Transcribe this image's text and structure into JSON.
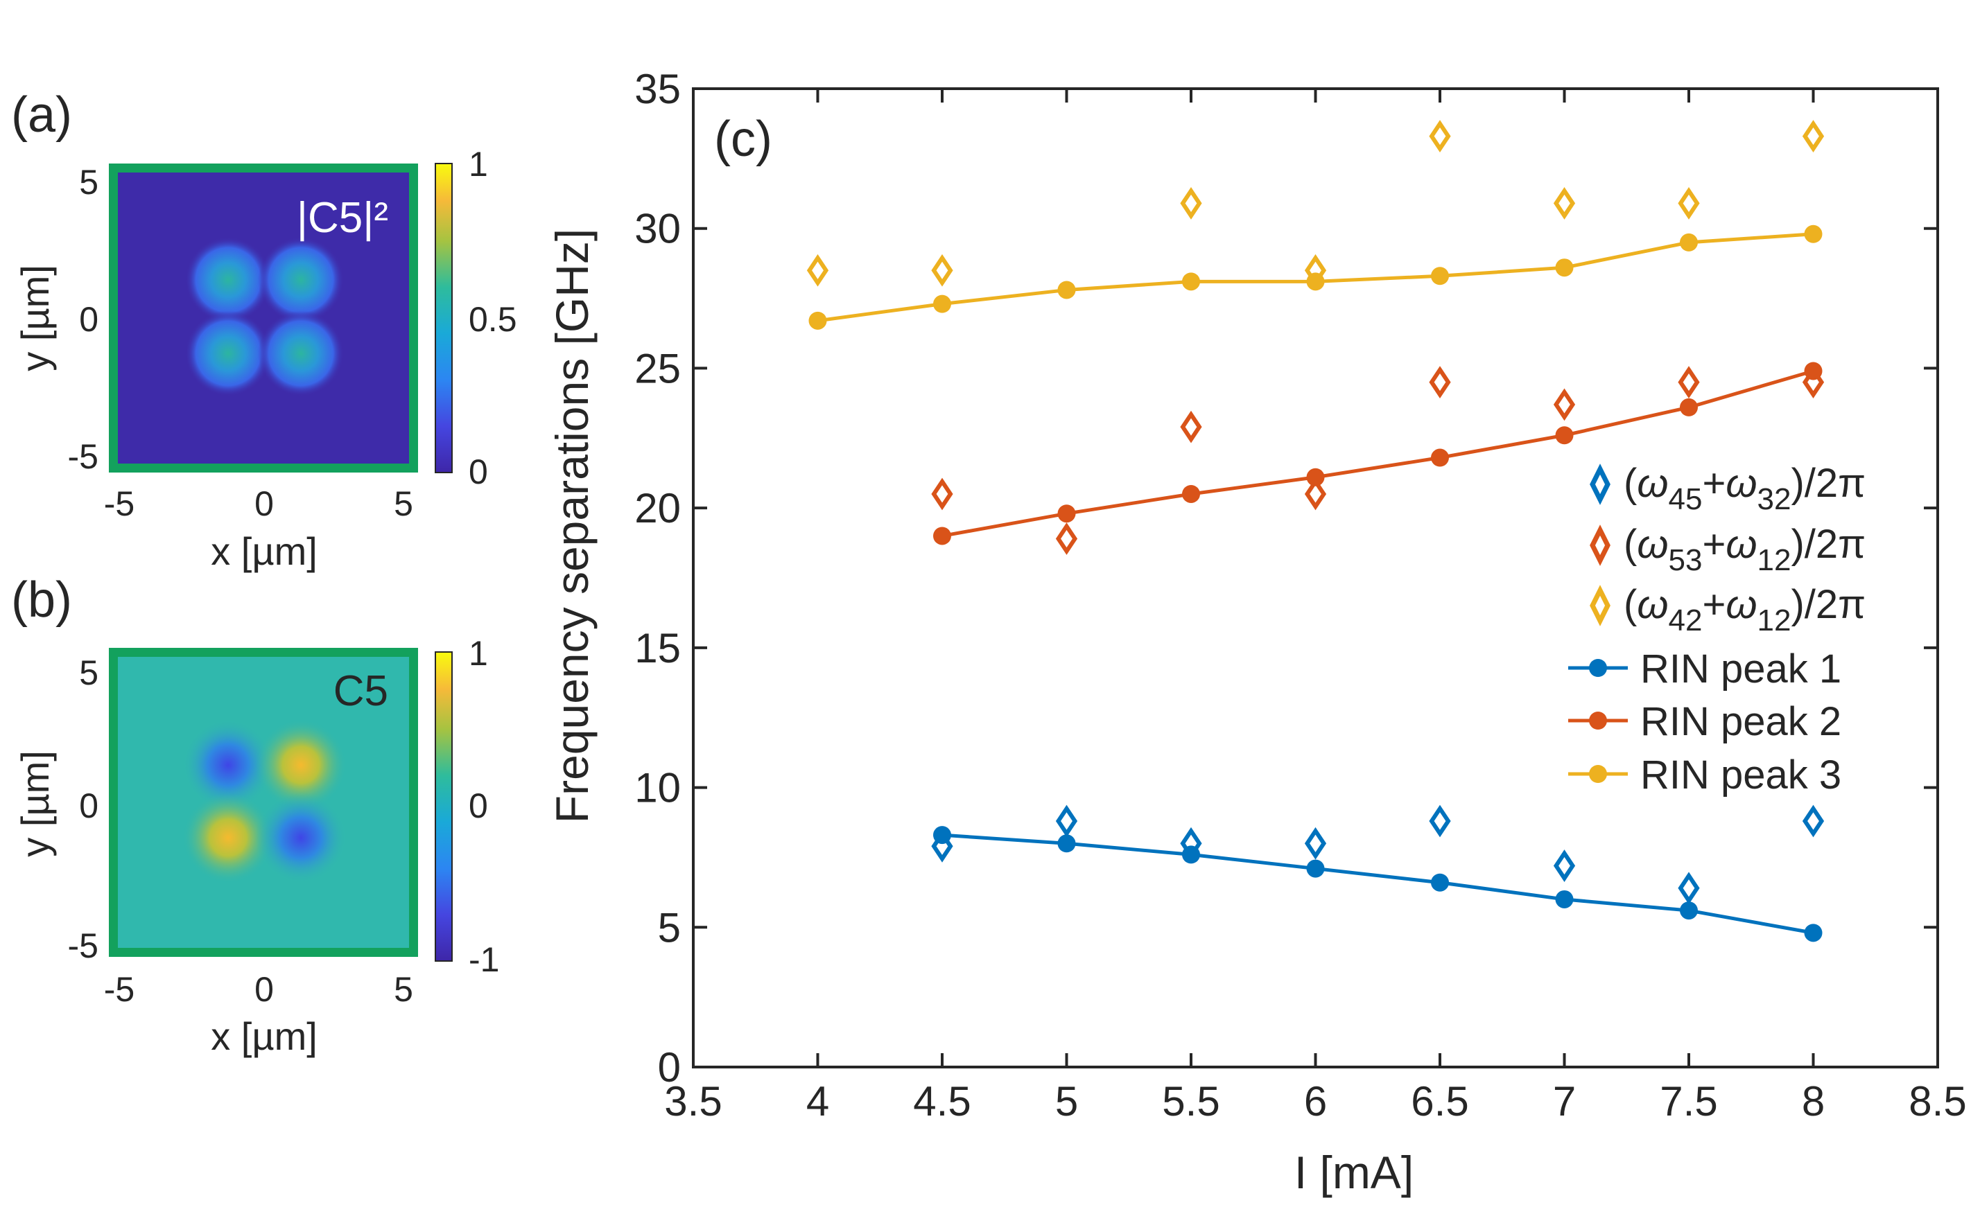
{
  "panels": {
    "a": {
      "label": "(a)",
      "overlay": "|C5|²",
      "xlabel": "x [µm]",
      "ylabel": "y [µm]",
      "xticks": [
        "-5",
        "0",
        "5"
      ],
      "yticks": [
        "5",
        "0",
        "-5"
      ],
      "colorbar_ticks": [
        "1",
        "0.5",
        "0"
      ],
      "frame_color": "#13a15d"
    },
    "b": {
      "label": "(b)",
      "overlay": "C5",
      "xlabel": "x [µm]",
      "ylabel": "y [µm]",
      "xticks": [
        "-5",
        "0",
        "5"
      ],
      "yticks": [
        "5",
        "0",
        "-5"
      ],
      "colorbar_ticks": [
        "1",
        "0",
        "-1"
      ],
      "frame_color": "#13a15d"
    }
  },
  "chart_data": {
    "type": "line",
    "panel_label": "(c)",
    "xlabel": "I [mA]",
    "ylabel": "Frequency separations [GHz]",
    "xlim": [
      3.5,
      8.5
    ],
    "ylim": [
      0,
      35
    ],
    "xticks": [
      "3.5",
      "4",
      "4.5",
      "5",
      "5.5",
      "6",
      "6.5",
      "7",
      "7.5",
      "8",
      "8.5"
    ],
    "yticks": [
      "0",
      "5",
      "10",
      "15",
      "20",
      "25",
      "30",
      "35"
    ],
    "grid": false,
    "legend_position": "right",
    "series": [
      {
        "name": "(ω45+ω32)/2π",
        "style": "diamond",
        "color": "#0072bd",
        "x": [
          4.5,
          5,
          5.5,
          6,
          6.5,
          7,
          7.5,
          8
        ],
        "y": [
          7.9,
          8.8,
          8.0,
          8.0,
          8.8,
          7.2,
          6.4,
          8.8
        ]
      },
      {
        "name": "(ω53+ω12)/2π",
        "style": "diamond",
        "color": "#d95319",
        "x": [
          4.5,
          5,
          5.5,
          6,
          6.5,
          7,
          7.5,
          8
        ],
        "y": [
          20.5,
          18.9,
          22.9,
          20.5,
          24.5,
          23.7,
          24.5,
          24.5
        ]
      },
      {
        "name": "(ω42+ω12)/2π",
        "style": "diamond",
        "color": "#edb120",
        "x": [
          4,
          4.5,
          5.5,
          6,
          6.5,
          7,
          7.5,
          8
        ],
        "y": [
          28.5,
          28.5,
          30.9,
          28.5,
          33.3,
          30.9,
          30.9,
          33.3
        ]
      },
      {
        "name": "RIN peak 1",
        "style": "line-marker",
        "color": "#0072bd",
        "x": [
          4.5,
          5,
          5.5,
          6,
          6.5,
          7,
          7.5,
          8
        ],
        "y": [
          8.3,
          8.0,
          7.6,
          7.1,
          6.6,
          6.0,
          5.6,
          4.8
        ]
      },
      {
        "name": "RIN peak 2",
        "style": "line-marker",
        "color": "#d95319",
        "x": [
          4.5,
          5,
          5.5,
          6,
          6.5,
          7,
          7.5,
          8
        ],
        "y": [
          19.0,
          19.8,
          20.5,
          21.1,
          21.8,
          22.6,
          23.6,
          24.9
        ]
      },
      {
        "name": "RIN peak 3",
        "style": "line-marker",
        "color": "#edb120",
        "x": [
          4,
          4.5,
          5,
          5.5,
          6,
          6.5,
          7,
          7.5,
          8
        ],
        "y": [
          26.7,
          27.3,
          27.8,
          28.1,
          28.1,
          28.3,
          28.6,
          29.5,
          29.8
        ]
      }
    ]
  }
}
